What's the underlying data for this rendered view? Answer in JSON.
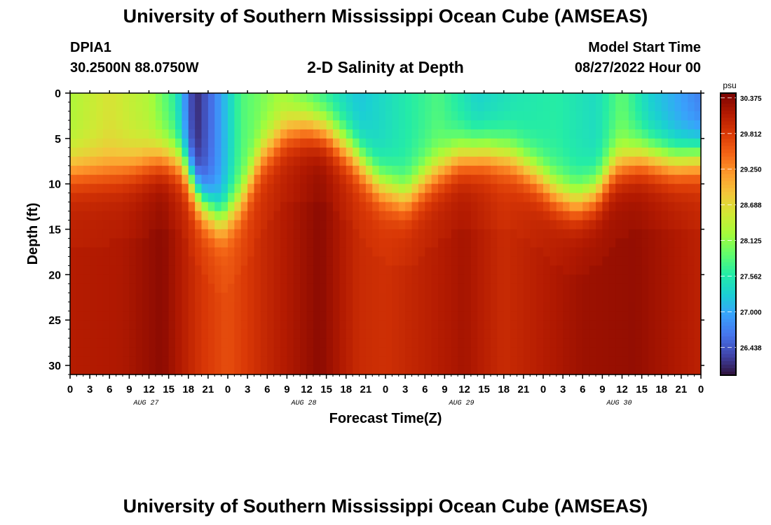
{
  "header": {
    "title": "University of Southern Mississippi Ocean Cube (AMSEAS)",
    "station": "DPIA1",
    "location": "30.2500N  88.0750W",
    "subtitle": "2-D Salinity at Depth",
    "model_start_label": "Model Start Time",
    "model_start_value": "08/27/2022 Hour 00",
    "title_repeat": "University of Southern Mississippi Ocean Cube (AMSEAS)"
  },
  "chart_data": {
    "type": "heatmap",
    "xlabel": "Forecast Time(Z)",
    "ylabel": "Depth (ft)",
    "x_hours": [
      0,
      3,
      6,
      9,
      12,
      15,
      18,
      21,
      24,
      27,
      30,
      33,
      36,
      39,
      42,
      45,
      48,
      51,
      54,
      57,
      60,
      63,
      66,
      69,
      72,
      75,
      78,
      81,
      84,
      87,
      90,
      93,
      96
    ],
    "x_tick_labels": [
      "0",
      "3",
      "6",
      "9",
      "12",
      "15",
      "18",
      "21",
      "0",
      "3",
      "6",
      "9",
      "12",
      "15",
      "18",
      "21",
      "0",
      "3",
      "6",
      "9",
      "12",
      "15",
      "18",
      "21",
      "0",
      "3",
      "6",
      "9",
      "12",
      "15",
      "18",
      "21",
      "0"
    ],
    "day_labels": [
      {
        "label": "AUG 27",
        "hour": 12
      },
      {
        "label": "AUG 28",
        "hour": 36
      },
      {
        "label": "AUG 29",
        "hour": 60
      },
      {
        "label": "AUG 30",
        "hour": 84
      }
    ],
    "y_ticks": [
      0,
      5,
      10,
      15,
      20,
      25,
      30
    ],
    "y_tick_labels": [
      "0",
      "5",
      "10",
      "15",
      "20",
      "25",
      "30"
    ],
    "ylim": [
      0,
      31
    ],
    "xlim": [
      0,
      96
    ],
    "colorbar": {
      "unit": "psu",
      "labels": [
        "30.375",
        "29.812",
        "29.250",
        "28.688",
        "28.125",
        "27.562",
        "27.000",
        "26.438"
      ],
      "min": 26.0,
      "max": 30.45
    },
    "mixed_layer_depth_ft": [
      {
        "hour": 0,
        "depth": 8.5
      },
      {
        "hour": 6,
        "depth": 8.5
      },
      {
        "hour": 10,
        "depth": 8.0
      },
      {
        "hour": 14,
        "depth": 7.0
      },
      {
        "hour": 17,
        "depth": 7.5
      },
      {
        "hour": 20,
        "depth": 12.0
      },
      {
        "hour": 23,
        "depth": 14.0
      },
      {
        "hour": 26,
        "depth": 12.0
      },
      {
        "hour": 29,
        "depth": 7.0
      },
      {
        "hour": 33,
        "depth": 4.0
      },
      {
        "hour": 36,
        "depth": 3.5
      },
      {
        "hour": 39,
        "depth": 4.0
      },
      {
        "hour": 43,
        "depth": 6.5
      },
      {
        "hour": 47,
        "depth": 10.0
      },
      {
        "hour": 51,
        "depth": 11.5
      },
      {
        "hour": 55,
        "depth": 9.0
      },
      {
        "hour": 59,
        "depth": 7.0
      },
      {
        "hour": 63,
        "depth": 6.5
      },
      {
        "hour": 67,
        "depth": 7.0
      },
      {
        "hour": 71,
        "depth": 9.0
      },
      {
        "hour": 74,
        "depth": 11.0
      },
      {
        "hour": 77,
        "depth": 12.0
      },
      {
        "hour": 80,
        "depth": 11.0
      },
      {
        "hour": 83,
        "depth": 8.0
      },
      {
        "hour": 87,
        "depth": 7.0
      },
      {
        "hour": 92,
        "depth": 7.5
      },
      {
        "hour": 96,
        "depth": 7.0
      }
    ],
    "surface_salinity_psu": [
      {
        "hour": 0,
        "value": 28.3
      },
      {
        "hour": 6,
        "value": 28.6
      },
      {
        "hour": 12,
        "value": 28.3
      },
      {
        "hour": 16,
        "value": 27.6
      },
      {
        "hour": 19,
        "value": 26.1
      },
      {
        "hour": 22,
        "value": 26.7
      },
      {
        "hour": 26,
        "value": 27.8
      },
      {
        "hour": 32,
        "value": 28.2
      },
      {
        "hour": 38,
        "value": 27.6
      },
      {
        "hour": 44,
        "value": 27.2
      },
      {
        "hour": 50,
        "value": 27.5
      },
      {
        "hour": 56,
        "value": 27.8
      },
      {
        "hour": 62,
        "value": 27.3
      },
      {
        "hour": 68,
        "value": 27.5
      },
      {
        "hour": 74,
        "value": 27.6
      },
      {
        "hour": 80,
        "value": 27.4
      },
      {
        "hour": 84,
        "value": 27.9
      },
      {
        "hour": 88,
        "value": 27.3
      },
      {
        "hour": 96,
        "value": 26.7
      }
    ],
    "deep_salinity_psu": [
      {
        "hour": 0,
        "value": 30.05
      },
      {
        "hour": 8,
        "value": 30.1
      },
      {
        "hour": 14,
        "value": 30.3
      },
      {
        "hour": 20,
        "value": 29.8
      },
      {
        "hour": 24,
        "value": 29.6
      },
      {
        "hour": 30,
        "value": 29.95
      },
      {
        "hour": 38,
        "value": 30.3
      },
      {
        "hour": 44,
        "value": 29.9
      },
      {
        "hour": 48,
        "value": 29.85
      },
      {
        "hour": 54,
        "value": 30.0
      },
      {
        "hour": 60,
        "value": 30.15
      },
      {
        "hour": 66,
        "value": 29.9
      },
      {
        "hour": 72,
        "value": 30.05
      },
      {
        "hour": 78,
        "value": 30.2
      },
      {
        "hour": 86,
        "value": 30.25
      },
      {
        "hour": 96,
        "value": 30.0
      }
    ]
  },
  "colors": {
    "colormap": [
      "#30123b",
      "#4145ab",
      "#4675ed",
      "#39a2fc",
      "#1bcfd4",
      "#24eca6",
      "#61fc6c",
      "#a4fc3b",
      "#d1e834",
      "#f3c63a",
      "#fe9b2d",
      "#f36315",
      "#d93806",
      "#b11901",
      "#7a0402"
    ]
  }
}
